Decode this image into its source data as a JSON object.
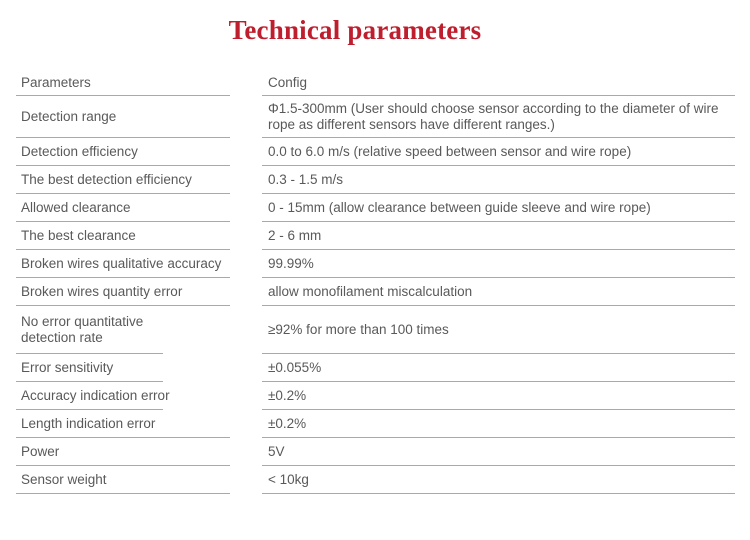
{
  "title": "Technical parameters",
  "colors": {
    "title": "#be1e2d",
    "text": "#595959",
    "divider": "#a9a9a9"
  },
  "table": {
    "header": {
      "param": "Parameters",
      "config": "Config"
    },
    "rows": [
      {
        "param": "Detection range",
        "config": "Φ1.5-300mm (User should choose sensor according to the diameter of wire rope as different sensors have different ranges.)",
        "height": "tall"
      },
      {
        "param": "Detection efficiency",
        "config": "0.0 to 6.0 m/s (relative speed between sensor and wire rope)",
        "height": "normal"
      },
      {
        "param": "The best detection efficiency",
        "config": "0.3 - 1.5 m/s",
        "height": "normal"
      },
      {
        "param": "Allowed clearance",
        "config": "0 - 15mm (allow clearance between guide sleeve and wire rope)",
        "height": "normal"
      },
      {
        "param": "The best clearance",
        "config": "2 - 6 mm",
        "height": "normal"
      },
      {
        "param": "Broken wires qualitative accuracy",
        "config": "99.99%",
        "height": "normal"
      },
      {
        "param": "Broken wires quantity error",
        "config": "allow monofilament miscalculation",
        "height": "normal"
      },
      {
        "param": "No error quantitative detection rate",
        "config": "≥92% for more than 100 times",
        "height": "xtall",
        "short_line": true,
        "wrap_label": true
      },
      {
        "param": "Error sensitivity",
        "config": "±0.055%",
        "height": "normal",
        "short_line": true
      },
      {
        "param": "Accuracy indication error",
        "config": "±0.2%",
        "height": "normal",
        "short_line": true
      },
      {
        "param": "Length indication error",
        "config": "±0.2%",
        "height": "normal"
      },
      {
        "param": "Power",
        "config": "5V",
        "height": "normal"
      },
      {
        "param": "Sensor weight",
        "config": "< 10kg",
        "height": "normal"
      }
    ]
  }
}
